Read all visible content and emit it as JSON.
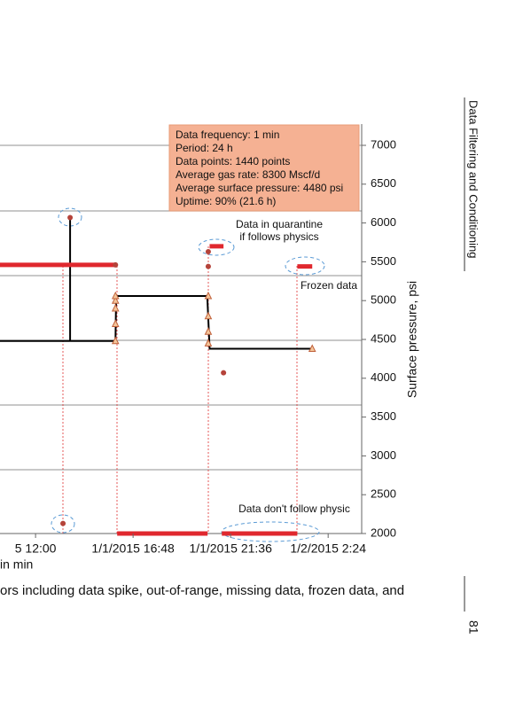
{
  "chart_data": {
    "type": "line",
    "x_label": "in min",
    "y_label": "Surface pressure, psi",
    "xlim": [
      -105,
      963
    ],
    "ylim": [
      2000,
      7000
    ],
    "xticks": [
      {
        "value": 0,
        "label": "5 12:00"
      },
      {
        "value": 288,
        "label": "1/1/2015 16:48"
      },
      {
        "value": 576,
        "label": "1/1/2015 21:36"
      },
      {
        "value": 864,
        "label": "1/2/2015 2:24"
      }
    ],
    "yticks": [
      2000,
      2500,
      3000,
      3500,
      4000,
      4500,
      5000,
      5500,
      6000,
      6500,
      7000
    ],
    "series": [
      {
        "color": "#000000",
        "x": [
          -105,
          102,
          102,
          102,
          236,
          238,
          507,
          514,
          817
        ],
        "values": [
          4480,
          4480,
          6070,
          4480,
          4480,
          5060,
          5060,
          4380,
          4380
        ]
      },
      {
        "color": "#e0282e",
        "x": [
          -105,
          236,
          null,
          241,
          508,
          null,
          514,
          555,
          null,
          550,
          773,
          null,
          773,
          817
        ],
        "values": [
          5460,
          5460,
          null,
          2000,
          2000,
          null,
          5700,
          5700,
          null,
          2000,
          2000,
          null,
          5440,
          5440
        ]
      }
    ],
    "markers": {
      "color": "#c0603a",
      "x": [
        236,
        236,
        236,
        236,
        236,
        510,
        510,
        510,
        510,
        817
      ],
      "values": [
        4480,
        4700,
        4900,
        5000,
        5060,
        5060,
        4800,
        4600,
        4450,
        4380
      ]
    },
    "points": {
      "color": "#b5433a",
      "x": [
        81,
        102,
        236,
        510,
        510,
        555
      ],
      "values": [
        2130,
        6070,
        5460,
        5630,
        5440,
        4070
      ]
    },
    "annotations": {
      "box": [
        "Data frequency: 1 min",
        "Period: 24 h",
        "Data points: 1440 points",
        "Average gas rate: 8300 Mscf/d",
        "Average surface pressure: 4480 psi",
        "Uptime: 90% (21.6 h)"
      ],
      "quarantine": [
        "Data in quarantine",
        "if follows physics"
      ],
      "frozen": "Frozen data",
      "physics": "Data don't follow physic"
    }
  },
  "page": {
    "caption": "ors including data spike, out-of-range, missing data, frozen data, and",
    "running_header": "Data Filtering and Conditioning",
    "page_number": "81"
  }
}
